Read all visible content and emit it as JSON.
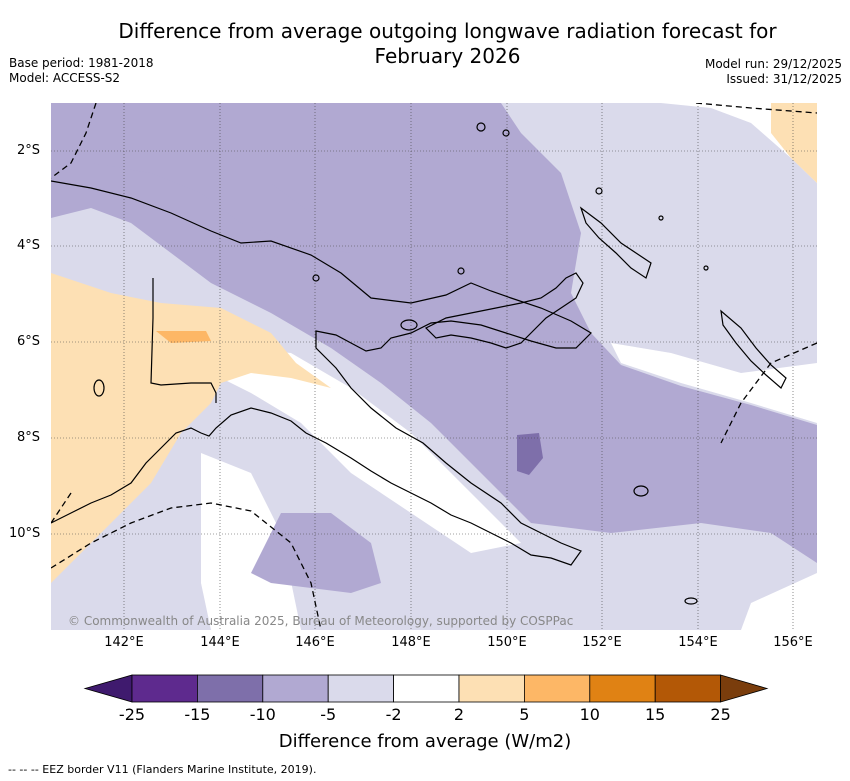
{
  "title": {
    "line1": "Difference from average outgoing longwave radiation forecast for",
    "line2": "February 2026"
  },
  "meta": {
    "base_period": "Base period: 1981-2018",
    "model": "Model: ACCESS-S2",
    "model_run": "Model run: 29/12/2025",
    "issued": "Issued: 31/12/2025"
  },
  "axes": {
    "lat_labels": [
      "2°S",
      "4°S",
      "6°S",
      "8°S",
      "10°S"
    ],
    "lon_labels": [
      "142°E",
      "144°E",
      "146°E",
      "148°E",
      "150°E",
      "152°E",
      "154°E",
      "156°E"
    ]
  },
  "attribution": "© Commonwealth of Australia 2025, Bureau of Meteorology, supported by COSPPac",
  "colorbar": {
    "title": "Difference from average (W/m2)",
    "ticks": [
      "-25",
      "-15",
      "-10",
      "-5",
      "-2",
      "2",
      "5",
      "10",
      "15",
      "25"
    ],
    "colors": [
      "#3f1a6e",
      "#5e2a8e",
      "#7e6faa",
      "#b1a9d2",
      "#dadaeb",
      "#ffffff",
      "#fde0b4",
      "#fdb766",
      "#e08214",
      "#b35806",
      "#7a3d0c"
    ]
  },
  "legend_note": "--  --  -- EEZ border V11 (Flanders Marine Institute, 2019).",
  "palette": {
    "light_purple": "#dadaeb",
    "mid_purple": "#b1a9d2",
    "dark_purple": "#7e6faa",
    "light_orange": "#fde0b4",
    "mid_orange": "#fdb766"
  }
}
